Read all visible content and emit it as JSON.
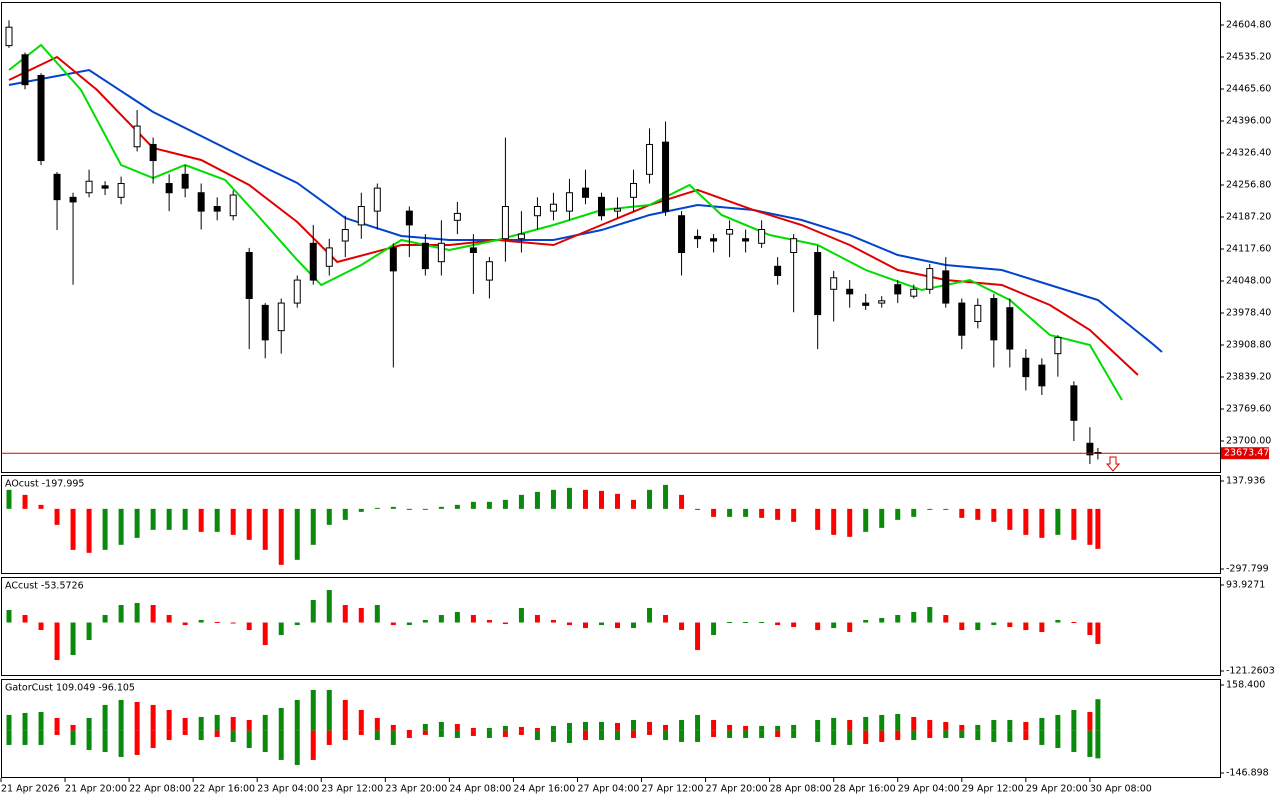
{
  "chart_data": [
    {
      "type": "candlestick",
      "x": [
        0,
        2,
        4,
        6,
        8,
        10,
        12,
        14,
        16,
        18,
        20,
        22,
        24,
        26,
        28,
        30,
        32,
        34,
        36,
        38,
        40,
        42,
        44,
        46,
        48,
        50,
        52,
        54,
        56,
        58,
        60,
        62,
        64,
        66,
        68,
        70,
        72,
        74,
        76,
        78,
        80,
        82,
        84,
        86,
        88,
        90,
        92,
        94,
        96,
        98,
        101,
        103,
        105,
        107,
        109,
        111,
        113,
        115,
        117,
        119,
        121,
        123,
        125,
        127,
        129,
        131,
        133,
        135,
        136
      ],
      "ohlc": [
        [
          24560,
          24615,
          24555,
          24600
        ],
        [
          24540,
          24545,
          24465,
          24475
        ],
        [
          24495,
          24500,
          24300,
          24310
        ],
        [
          24280,
          24285,
          24159,
          24225
        ],
        [
          24230,
          24240,
          24040,
          24220
        ],
        [
          24240,
          24290,
          24230,
          24265
        ],
        [
          24255,
          24265,
          24235,
          24250
        ],
        [
          24230,
          24275,
          24215,
          24260
        ],
        [
          24340,
          24420,
          24330,
          24385
        ],
        [
          24345,
          24360,
          24260,
          24310
        ],
        [
          24260,
          24280,
          24200,
          24240
        ],
        [
          24280,
          24300,
          24230,
          24250
        ],
        [
          24240,
          24260,
          24160,
          24200
        ],
        [
          24210,
          24230,
          24180,
          24200
        ],
        [
          24190,
          24245,
          24180,
          24235
        ],
        [
          24110,
          24120,
          23900,
          24010
        ],
        [
          23995,
          24000,
          23880,
          23920
        ],
        [
          23940,
          24010,
          23890,
          24000
        ],
        [
          24000,
          24060,
          23990,
          24050
        ],
        [
          24130,
          24170,
          24040,
          24050
        ],
        [
          24080,
          24140,
          24060,
          24120
        ],
        [
          24135,
          24190,
          24100,
          24160
        ],
        [
          24170,
          24240,
          24140,
          24210
        ],
        [
          24200,
          24260,
          24160,
          24250
        ],
        [
          24120,
          24130,
          23860,
          24070
        ],
        [
          24200,
          24210,
          24100,
          24170
        ],
        [
          24130,
          24150,
          24060,
          24075
        ],
        [
          24090,
          24180,
          24060,
          24130
        ],
        [
          24180,
          24220,
          24150,
          24195
        ],
        [
          24120,
          24150,
          24020,
          24110
        ],
        [
          24050,
          24100,
          24010,
          24090
        ],
        [
          24140,
          24360,
          24090,
          24210
        ],
        [
          24140,
          24200,
          24110,
          24150
        ],
        [
          24190,
          24230,
          24160,
          24210
        ],
        [
          24200,
          24240,
          24180,
          24215
        ],
        [
          24200,
          24270,
          24180,
          24240
        ],
        [
          24250,
          24290,
          24215,
          24230
        ],
        [
          24230,
          24240,
          24180,
          24190
        ],
        [
          24200,
          24230,
          24185,
          24205
        ],
        [
          24230,
          24290,
          24200,
          24260
        ],
        [
          24280,
          24380,
          24260,
          24345
        ],
        [
          24350,
          24395,
          24190,
          24200
        ],
        [
          24190,
          24200,
          24060,
          24110
        ],
        [
          24145,
          24160,
          24120,
          24140
        ],
        [
          24140,
          24150,
          24110,
          24135
        ],
        [
          24150,
          24180,
          24100,
          24160
        ],
        [
          24140,
          24160,
          24110,
          24135
        ],
        [
          24130,
          24180,
          24120,
          24160
        ],
        [
          24080,
          24100,
          24040,
          24060
        ],
        [
          24110,
          24150,
          23980,
          24140
        ],
        [
          24110,
          24125,
          23900,
          23975
        ],
        [
          24030,
          24070,
          23960,
          24055
        ],
        [
          24030,
          24050,
          23990,
          24020
        ],
        [
          24000,
          24020,
          23985,
          23995
        ],
        [
          24000,
          24015,
          23990,
          24005
        ],
        [
          24040,
          24050,
          24000,
          24020
        ],
        [
          24015,
          24040,
          24010,
          24030
        ],
        [
          24030,
          24085,
          24020,
          24075
        ],
        [
          24070,
          24100,
          23990,
          24000
        ],
        [
          24000,
          24010,
          23900,
          23930
        ],
        [
          23960,
          24010,
          23945,
          23995
        ],
        [
          24010,
          24020,
          23860,
          23920
        ],
        [
          23990,
          24010,
          23860,
          23900
        ],
        [
          23880,
          23900,
          23810,
          23840
        ],
        [
          23865,
          23880,
          23800,
          23820
        ],
        [
          23890,
          23930,
          23840,
          23925
        ],
        [
          23820,
          23830,
          23700,
          23745
        ],
        [
          23695,
          23730,
          23650,
          23670
        ],
        [
          23675,
          23685,
          23660,
          23673.47
        ]
      ],
      "up_color": "#ffffff",
      "down_color": "#000000",
      "lines": [
        {
          "color": "#0044cc",
          "x": [
            0,
            10,
            18,
            30,
            36,
            42,
            49,
            55,
            61,
            68,
            74,
            80,
            86,
            93,
            99,
            105,
            111,
            117,
            124,
            130,
            136,
            143,
            144
          ],
          "values": [
            24474.3,
            24506.9,
            24415.6,
            24311.2,
            24261.2,
            24185.0,
            24145.9,
            24137.2,
            24137.2,
            24137.2,
            24158.9,
            24191.6,
            24213.3,
            24202.4,
            24180.7,
            24148.0,
            24104.5,
            24082.8,
            24071.9,
            24039.3,
            24006.7,
            23908.8,
            23893.6
          ]
        },
        {
          "color": "#e00000",
          "x": [
            0,
            6,
            11,
            18,
            24,
            30,
            36,
            41,
            49,
            55,
            61,
            68,
            74,
            80,
            86,
            93,
            99,
            105,
            111,
            117,
            124,
            130,
            135,
            141
          ],
          "values": [
            24485.2,
            24535.2,
            24463.4,
            24337.3,
            24311.2,
            24256.8,
            24176.3,
            24089.3,
            24126.3,
            24126.3,
            24137.2,
            24126.3,
            24169.8,
            24213.3,
            24246.0,
            24202.4,
            24169.8,
            24126.3,
            24071.9,
            24050.2,
            24039.3,
            23995.8,
            23941.4,
            23843.5
          ]
        },
        {
          "color": "#00dd00",
          "x": [
            0,
            4,
            9,
            14,
            18,
            22,
            27,
            31,
            36,
            39,
            44,
            49,
            55,
            61,
            68,
            74,
            80,
            85,
            89,
            95,
            101,
            107,
            114,
            120,
            125,
            130,
            135,
            139
          ],
          "values": [
            24506.9,
            24561.3,
            24463.4,
            24300.3,
            24272.0,
            24300.3,
            24267.7,
            24191.6,
            24093.7,
            24039.3,
            24082.8,
            24137.2,
            24115.4,
            24137.2,
            24169.8,
            24202.4,
            24213.3,
            24256.8,
            24191.6,
            24148.0,
            24126.3,
            24071.9,
            24028.4,
            24050.2,
            24006.7,
            23930.6,
            23908.8,
            23789.2
          ]
        }
      ],
      "current_price": 23673.47,
      "current_color": "#e00000",
      "xlim": [
        -0.875,
        151.25
      ],
      "ylim": [
        23632.6,
        24652.65
      ],
      "yticks": [
        {
          "value": 24604.8,
          "label": "24604.80"
        },
        {
          "value": 24535.2,
          "label": "24535.20"
        },
        {
          "value": 24465.6,
          "label": "24465.60"
        },
        {
          "value": 24396,
          "label": "24396.00"
        },
        {
          "value": 24326.4,
          "label": "24326.40"
        },
        {
          "value": 24256.8,
          "label": "24256.80"
        },
        {
          "value": 24187.2,
          "label": "24187.20"
        },
        {
          "value": 24117.6,
          "label": "24117.60"
        },
        {
          "value": 24048,
          "label": "24048.00"
        },
        {
          "value": 23978.4,
          "label": "23978.40"
        },
        {
          "value": 23908.8,
          "label": "23908.80"
        },
        {
          "value": 23839.2,
          "label": "23839.20"
        },
        {
          "value": 23769.6,
          "label": "23769.60"
        },
        {
          "value": 23700,
          "label": "23700.00"
        }
      ],
      "xticks": [
        {
          "value": -1,
          "label": "21 Apr 2026"
        },
        {
          "value": 7,
          "label": "21 Apr 20:00"
        },
        {
          "value": 15,
          "label": "22 Apr 08:00"
        },
        {
          "value": 23,
          "label": "22 Apr 16:00"
        },
        {
          "value": 31,
          "label": "23 Apr 04:00"
        },
        {
          "value": 39,
          "label": "23 Apr 12:00"
        },
        {
          "value": 47,
          "label": "23 Apr 20:00"
        },
        {
          "value": 55,
          "label": "24 Apr 08:00"
        },
        {
          "value": 63,
          "label": "24 Apr 16:00"
        },
        {
          "value": 71,
          "label": "27 Apr 04:00"
        },
        {
          "value": 79,
          "label": "27 Apr 12:00"
        },
        {
          "value": 87,
          "label": "27 Apr 20:00"
        },
        {
          "value": 95,
          "label": "28 Apr 08:00"
        },
        {
          "value": 103,
          "label": "28 Apr 16:00"
        },
        {
          "value": 111,
          "label": "29 Apr 04:00"
        },
        {
          "value": 119,
          "label": "29 Apr 12:00"
        },
        {
          "value": 127,
          "label": "29 Apr 20:00"
        },
        {
          "value": 135,
          "label": "30 Apr 08:00"
        }
      ]
    },
    {
      "type": "oscillator",
      "label": "AOcust -197.995",
      "values": [
        94.1,
        69.3,
        19.8,
        -79.2,
        -203.0,
        -217.8,
        -203.0,
        -178.2,
        -143.6,
        -104.0,
        -104.0,
        -104.0,
        -113.9,
        -113.9,
        -128.7,
        -153.5,
        -203.0,
        -277.2,
        -252.5,
        -178.2,
        -79.2,
        -54.5,
        -14.9,
        5,
        9.9,
        -5,
        -5,
        9.9,
        19.8,
        34.7,
        34.7,
        44.6,
        69.3,
        84.2,
        94.1,
        104.0,
        94.1,
        89.1,
        74.3,
        44.6,
        94.1,
        118.8,
        69.3,
        -5,
        -39.6,
        -39.6,
        -39.6,
        -44.6,
        -54.5,
        -64.4,
        -104.0,
        -128.7,
        -138.6,
        -113.9,
        -94.1,
        -54.5,
        -39.6,
        -5,
        -5,
        -44.6,
        -54.5,
        -64.4,
        -104.0,
        -128.7,
        -143.6,
        -128.7,
        -153.5,
        -178.2,
        -197.995
      ],
      "up_color": "#0a8a0a",
      "down_color": "#ff0000",
      "ylim": [
        -317.6,
        162.7
      ],
      "yticks": [
        -297.799,
        137.936
      ]
    },
    {
      "type": "oscillator",
      "label": "ACcust -53.5726",
      "values": [
        31.3,
        18.8,
        -18.8,
        -93.8,
        -81.3,
        -43.8,
        18.8,
        43.8,
        48.8,
        43.8,
        18.8,
        -6.3,
        6.3,
        1.3,
        -1.3,
        -18.8,
        -56.3,
        -31.3,
        -6.3,
        56.3,
        81.3,
        43.8,
        36.3,
        43.8,
        -6.3,
        -6.3,
        6.3,
        18.8,
        26.3,
        18.8,
        6.3,
        -3.8,
        36.3,
        18.8,
        6.3,
        -6.3,
        -13.8,
        -6.3,
        -13.8,
        -13.8,
        36.3,
        18.8,
        -18.8,
        -68.8,
        -31.3,
        1.3,
        1.3,
        1.3,
        -6.3,
        -11.3,
        -18.8,
        -13.8,
        -23.8,
        6.3,
        11.3,
        18.8,
        26.3,
        38.8,
        18.8,
        -18.8,
        -18.8,
        -6.3,
        -11.3,
        -18.8,
        -23.8,
        6.3,
        1.3,
        -31.3,
        -53.5726
      ],
      "up_color": "#0a8a0a",
      "down_color": "#ff0000",
      "ylim": [
        -131.3,
        111.4
      ],
      "yticks": [
        -121.2603,
        93.9271
      ]
    },
    {
      "type": "gator",
      "label": "GatorCust 109.049 -96.105",
      "upper": [
        54.5,
        61.4,
        64.9,
        44.1,
        19.8,
        44.1,
        89.2,
        106.5,
        99.6,
        89.2,
        71.8,
        44.1,
        47.5,
        54.5,
        47.5,
        37.1,
        54.5,
        78.7,
        106.5,
        141.2,
        141.2,
        106.5,
        71.8,
        44.1,
        19.8,
        2.4,
        23.2,
        30.2,
        23.2,
        9.4,
        9.4,
        16.3,
        12.8,
        9.4,
        16.3,
        26.7,
        30.2,
        30.2,
        26.7,
        37.1,
        30.2,
        19.8,
        37.1,
        54.5,
        37.1,
        19.8,
        16.3,
        16.3,
        16.3,
        19.8,
        37.1,
        44.1,
        37.1,
        47.5,
        54.5,
        57.9,
        47.5,
        37.1,
        30.2,
        19.8,
        19.8,
        37.1,
        37.1,
        30.2,
        44.1,
        54.5,
        71.8,
        64.9,
        109.049
      ],
      "lower": [
        -49.6,
        -49.6,
        -49.6,
        -14.9,
        -49.6,
        -66.9,
        -73.9,
        -91.2,
        -84.3,
        -60.0,
        -32.3,
        -14.9,
        -32.3,
        -21.9,
        -39.2,
        -60.0,
        -73.9,
        -101.6,
        -119.0,
        -101.6,
        -49.6,
        -32.3,
        -14.9,
        -32.3,
        -49.6,
        -25.3,
        -14.9,
        -21.9,
        -25.3,
        -18.4,
        -25.3,
        -21.9,
        -14.9,
        -32.3,
        -39.2,
        -42.7,
        -32.3,
        -32.3,
        -32.3,
        -25.3,
        -14.9,
        -32.3,
        -39.2,
        -39.2,
        -21.9,
        -25.3,
        -25.3,
        -25.3,
        -21.9,
        -25.3,
        -39.2,
        -49.6,
        -49.6,
        -46.1,
        -39.2,
        -32.3,
        -32.3,
        -25.3,
        -25.3,
        -25.3,
        -32.3,
        -39.2,
        -39.2,
        -32.3,
        -49.6,
        -60.0,
        -73.9,
        -91.2,
        -96.105
      ],
      "up_color": "#0a8a0a",
      "down_color": "#ff0000",
      "ylim": [
        -164.2,
        175.7
      ],
      "yticks": [
        {
          "value": -146.898,
          "label": "-146.898"
        },
        {
          "value": 158.4,
          "label": "158.400"
        }
      ]
    }
  ]
}
